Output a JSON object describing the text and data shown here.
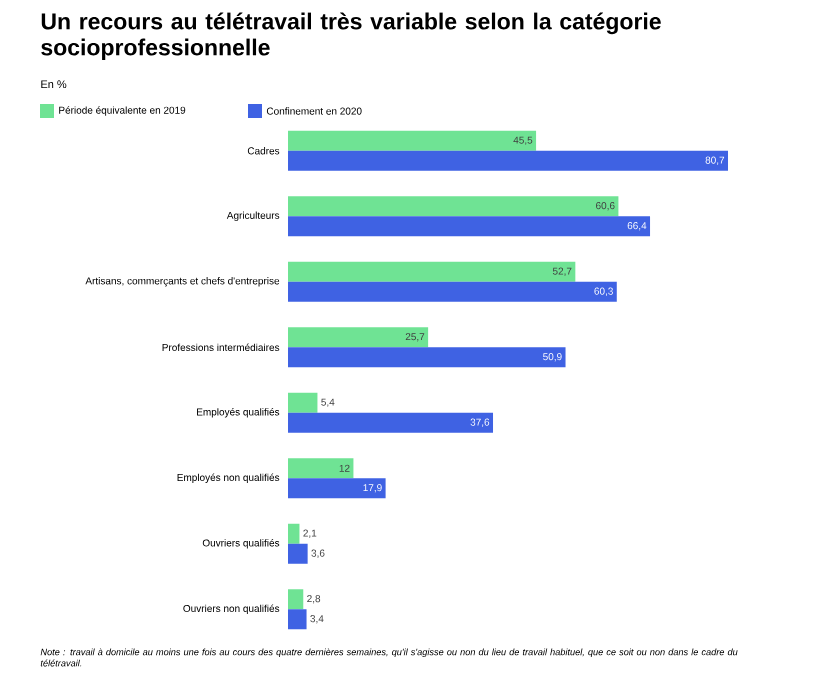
{
  "chart_data": {
    "type": "bar",
    "orientation": "horizontal",
    "title": "Un recours au télétravail très variable selon la catégorie socioprofessionnelle",
    "subtitle": "En %",
    "categories": [
      "Cadres",
      "Agriculteurs",
      "Artisans, commerçants et chefs d'entreprise",
      "Professions intermédiaires",
      "Employés qualifiés",
      "Employés non qualifiés",
      "Ouvriers qualifiés",
      "Ouvriers non qualifiés"
    ],
    "series": [
      {
        "name": "Période équivalente en 2019",
        "color": "#6fe394",
        "values": [
          45.5,
          60.6,
          52.7,
          25.7,
          5.4,
          12,
          2.1,
          2.8
        ],
        "value_labels": [
          "45,5",
          "60,6",
          "52,7",
          "25,7",
          "5,4",
          "12",
          "2,1",
          "2,8"
        ]
      },
      {
        "name": "Confinement en 2020",
        "color": "#3f62e3",
        "values": [
          80.7,
          66.4,
          60.3,
          50.9,
          37.6,
          17.9,
          3.6,
          3.4
        ],
        "value_labels": [
          "80,7",
          "66,4",
          "60,3",
          "50,9",
          "37,6",
          "17,9",
          "3,6",
          "3,4"
        ]
      }
    ],
    "legend": "top left",
    "annotations": [
      "Note : travail à domicile au moins une fois au cours des quatre dernières semaines, qu'il s'agisse ou non du lieu de travail habituel, que ce soit ou non dans le cadre du télétravail."
    ]
  }
}
